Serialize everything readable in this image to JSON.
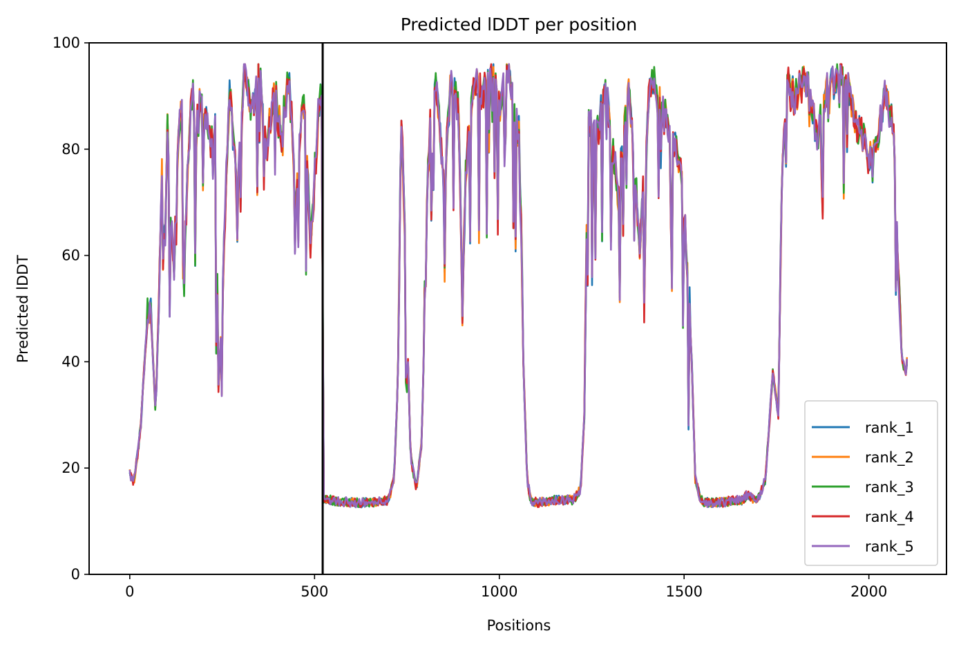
{
  "chart_data": {
    "type": "line",
    "title": "Predicted lDDT per position",
    "xlabel": "Positions",
    "ylabel": "Predicted lDDT",
    "xlim": [
      -110,
      2210
    ],
    "ylim": [
      0,
      100
    ],
    "xticks": [
      0,
      500,
      1000,
      1500,
      2000
    ],
    "yticks": [
      0,
      20,
      40,
      60,
      80,
      100
    ],
    "grid": false,
    "legend_position": "lower-right",
    "vertical_marker_x": 522,
    "series": [
      {
        "name": "rank_1",
        "color": "#1f77b4"
      },
      {
        "name": "rank_2",
        "color": "#ff7f0e"
      },
      {
        "name": "rank_3",
        "color": "#2ca02c"
      },
      {
        "name": "rank_4",
        "color": "#d62728"
      },
      {
        "name": "rank_5",
        "color": "#9467bd"
      }
    ],
    "profile": {
      "x": [
        0,
        10,
        20,
        30,
        40,
        50,
        60,
        70,
        80,
        90,
        100,
        110,
        120,
        130,
        140,
        150,
        160,
        170,
        180,
        200,
        220,
        230,
        240,
        250,
        270,
        290,
        310,
        330,
        350,
        370,
        390,
        410,
        430,
        450,
        470,
        490,
        510,
        521,
        523,
        540,
        600,
        660,
        700,
        715,
        725,
        735,
        745,
        760,
        775,
        790,
        810,
        830,
        850,
        870,
        890,
        900,
        910,
        930,
        950,
        980,
        1000,
        1020,
        1040,
        1055,
        1065,
        1075,
        1085,
        1100,
        1150,
        1200,
        1220,
        1230,
        1240,
        1260,
        1290,
        1320,
        1350,
        1380,
        1410,
        1440,
        1470,
        1490,
        1505,
        1520,
        1530,
        1545,
        1560,
        1600,
        1640,
        1660,
        1670,
        1690,
        1700,
        1720,
        1740,
        1755,
        1765,
        1780,
        1800,
        1830,
        1860,
        1890,
        1920,
        1950,
        1980,
        2010,
        2040,
        2060,
        2070,
        2080,
        2090,
        2100,
        2105
      ],
      "y": [
        19,
        17,
        22,
        28,
        40,
        50,
        45,
        30,
        55,
        80,
        85,
        65,
        55,
        78,
        86,
        62,
        80,
        88,
        82,
        89,
        78,
        88,
        35,
        50,
        90,
        70,
        92,
        85,
        93,
        78,
        90,
        80,
        92,
        70,
        88,
        60,
        85,
        90,
        14,
        14,
        13.5,
        13.5,
        14,
        18,
        35,
        85,
        60,
        22,
        16,
        25,
        85,
        90,
        70,
        92,
        85,
        50,
        75,
        90,
        88,
        92,
        85,
        93,
        86,
        80,
        40,
        18,
        14,
        13.5,
        14,
        14,
        16,
        30,
        82,
        80,
        90,
        70,
        88,
        60,
        92,
        85,
        80,
        75,
        60,
        42,
        18,
        14,
        13.5,
        13.5,
        14,
        14,
        15,
        14,
        14,
        18,
        38,
        30,
        75,
        90,
        88,
        92,
        80,
        90,
        93,
        88,
        80,
        75,
        88,
        85,
        78,
        55,
        40,
        38,
        42
      ]
    }
  }
}
